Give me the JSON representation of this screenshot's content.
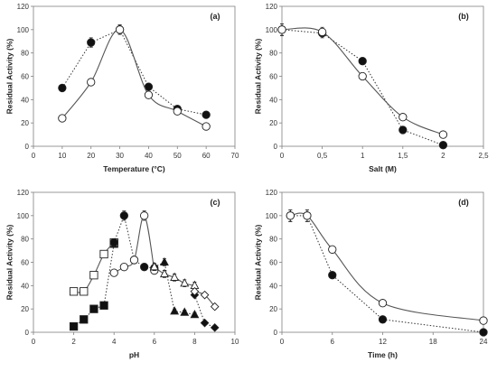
{
  "chart_data": [
    {
      "id": "a",
      "type": "scatter",
      "panel_label": "(a)",
      "title": "",
      "xlabel": "Temperature (°C)",
      "ylabel": "Residual Activity (%)",
      "xlim": [
        0,
        70
      ],
      "ylim": [
        0,
        120
      ],
      "xticks": [
        "0",
        "10",
        "20",
        "30",
        "40",
        "50",
        "60",
        "70"
      ],
      "yticks": [
        "0",
        "20",
        "40",
        "60",
        "80",
        "100",
        "120"
      ],
      "grid": false,
      "series": [
        {
          "style": "filled-circle",
          "line": "dotted",
          "x": [
            10,
            20,
            30,
            40,
            50,
            60
          ],
          "y": [
            50,
            89,
            100,
            51,
            32,
            27
          ],
          "err": [
            2,
            4,
            4,
            3,
            2,
            2
          ]
        },
        {
          "style": "open-circle",
          "line": "solid",
          "x": [
            10,
            20,
            30,
            40,
            50,
            60
          ],
          "y": [
            24,
            55,
            100,
            44,
            30,
            17
          ],
          "err": [
            2,
            2,
            4,
            2,
            2,
            2
          ]
        }
      ]
    },
    {
      "id": "b",
      "type": "scatter",
      "panel_label": "(b)",
      "title": "",
      "xlabel": "Salt (M)",
      "ylabel": "Residual Activity (%)",
      "xlim": [
        0,
        2.5
      ],
      "ylim": [
        0,
        120
      ],
      "xticks": [
        "0",
        "0,5",
        "1",
        "1,5",
        "2",
        "2,5"
      ],
      "yticks": [
        "0",
        "20",
        "40",
        "60",
        "80",
        "100",
        "120"
      ],
      "grid": false,
      "series": [
        {
          "style": "filled-circle",
          "line": "dotted",
          "x": [
            0,
            0.5,
            1.0,
            1.5,
            2.0
          ],
          "y": [
            100,
            97,
            73,
            14,
            1
          ],
          "err": [
            5,
            4,
            3,
            2,
            1
          ]
        },
        {
          "style": "open-circle",
          "line": "solid",
          "x": [
            0,
            0.5,
            1.0,
            1.5,
            2.0
          ],
          "y": [
            100,
            98,
            60,
            25,
            10
          ],
          "err": [
            5,
            4,
            3,
            2,
            2
          ]
        }
      ]
    },
    {
      "id": "c",
      "type": "scatter",
      "panel_label": "(c)",
      "title": "",
      "xlabel": "pH",
      "ylabel": "Residual Activity (%)",
      "xlim": [
        0,
        10
      ],
      "ylim": [
        0,
        120
      ],
      "xticks": [
        "0",
        "2",
        "4",
        "6",
        "8",
        "10"
      ],
      "yticks": [
        "0",
        "20",
        "40",
        "60",
        "80",
        "100",
        "120"
      ],
      "grid": false,
      "series": [
        {
          "style": "filled-square",
          "line": "dotted",
          "x": [
            2.0,
            2.5,
            3.0,
            3.5,
            4.0
          ],
          "y": [
            5,
            11,
            20,
            23,
            76
          ],
          "err": [
            1,
            1,
            1,
            1,
            3
          ]
        },
        {
          "style": "open-square",
          "line": "solid",
          "x": [
            2.0,
            2.5,
            3.0,
            3.5,
            4.0
          ],
          "y": [
            35,
            35,
            49,
            67,
            77
          ],
          "err": [
            2,
            2,
            2,
            3,
            3
          ]
        },
        {
          "style": "filled-circle",
          "line": "dotted",
          "x": [
            4.0,
            4.5,
            5.0,
            5.5,
            6.0
          ],
          "y": [
            77,
            100,
            62,
            56,
            55
          ],
          "err": [
            3,
            4,
            3,
            3,
            3
          ]
        },
        {
          "style": "open-circle",
          "line": "solid",
          "x": [
            4.0,
            4.5,
            5.0,
            5.5,
            6.0
          ],
          "y": [
            51,
            56,
            62,
            100,
            53
          ],
          "err": [
            2,
            2,
            3,
            4,
            3
          ]
        },
        {
          "style": "filled-triangle",
          "line": "dotted",
          "x": [
            6.0,
            6.5,
            7.0,
            7.5,
            8.0
          ],
          "y": [
            56,
            60,
            18,
            17,
            15
          ],
          "err": [
            3,
            3,
            2,
            2,
            2
          ]
        },
        {
          "style": "open-triangle",
          "line": "solid",
          "x": [
            6.0,
            6.5,
            7.0,
            7.5,
            8.0
          ],
          "y": [
            56,
            50,
            47,
            42,
            40
          ],
          "err": [
            3,
            3,
            3,
            3,
            3
          ]
        },
        {
          "style": "filled-diamond",
          "line": "dotted",
          "x": [
            8.0,
            8.5,
            9.0
          ],
          "y": [
            32,
            8,
            4
          ],
          "err": [
            2,
            1,
            1
          ]
        },
        {
          "style": "open-diamond",
          "line": "solid",
          "x": [
            8.0,
            8.5,
            9.0
          ],
          "y": [
            35,
            32,
            22
          ],
          "err": [
            2,
            2,
            2
          ]
        }
      ]
    },
    {
      "id": "d",
      "type": "scatter",
      "panel_label": "(d)",
      "title": "",
      "xlabel": "Time (h)",
      "ylabel": "Residual Activity (%)",
      "xlim": [
        0,
        24
      ],
      "ylim": [
        0,
        120
      ],
      "xticks": [
        "0",
        "6",
        "12",
        "18",
        "24"
      ],
      "yticks": [
        "0",
        "20",
        "40",
        "60",
        "80",
        "100",
        "120"
      ],
      "grid": false,
      "series": [
        {
          "style": "filled-circle",
          "line": "dotted",
          "x": [
            1,
            3,
            6,
            12,
            24
          ],
          "y": [
            100,
            100,
            49,
            11,
            0
          ],
          "err": [
            5,
            5,
            2,
            1,
            1
          ]
        },
        {
          "style": "open-circle",
          "line": "solid",
          "x": [
            1,
            3,
            6,
            12,
            24
          ],
          "y": [
            100,
            100,
            71,
            25,
            10
          ],
          "err": [
            5,
            5,
            3,
            2,
            1
          ]
        }
      ]
    }
  ]
}
